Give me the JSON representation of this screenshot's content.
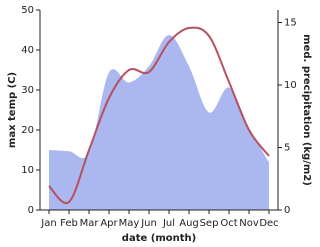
{
  "chart_data": {
    "type": "line_area",
    "categories": [
      "Jan",
      "Feb",
      "Mar",
      "Apr",
      "May",
      "Jun",
      "Jul",
      "Aug",
      "Sep",
      "Oct",
      "Nov",
      "Dec"
    ],
    "xlabel": "date (month)",
    "ylabel": "max temp (C)",
    "y2label": "med. precipitation (kg/m2)",
    "ylim": [
      0,
      50
    ],
    "yticks": [
      0,
      10,
      20,
      30,
      40,
      50
    ],
    "y2lim": [
      0,
      16
    ],
    "y2ticks": [
      0,
      5,
      10,
      15
    ],
    "series": [
      {
        "name": "max temp",
        "color": "#b85060",
        "values": [
          6,
          2,
          15,
          28,
          35,
          34.5,
          42,
          45.5,
          43.5,
          32,
          20,
          13.5
        ]
      },
      {
        "name": "med. precipitation",
        "color": "#aab8ef",
        "axis": "y2",
        "values": [
          4.8,
          4.7,
          4.6,
          11,
          10.2,
          11.5,
          14,
          11.5,
          7.8,
          9.8,
          6.6,
          3.8
        ]
      }
    ]
  }
}
